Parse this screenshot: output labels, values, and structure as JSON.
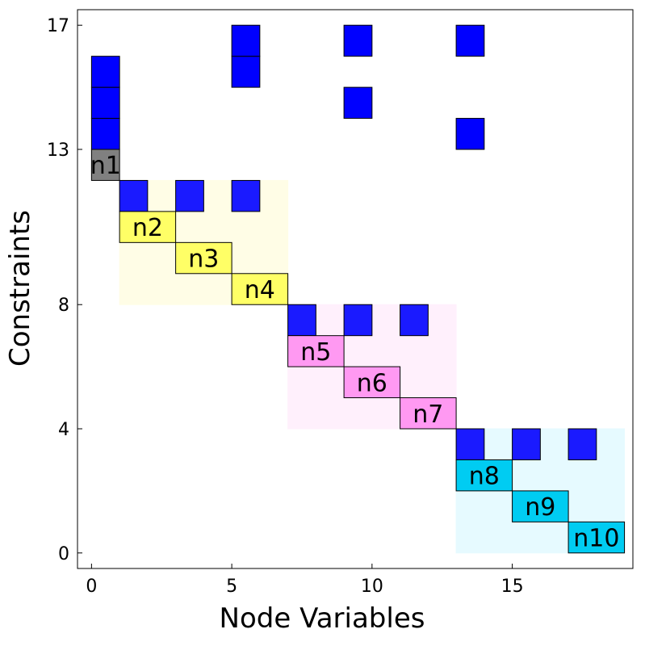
{
  "chart_data": {
    "type": "heatmap",
    "xlabel": "Node Variables",
    "ylabel": "Constraints",
    "xlim": [
      -0.5,
      19.3
    ],
    "ylim": [
      -0.5,
      17.5
    ],
    "xticks": [
      0,
      5,
      10,
      15
    ],
    "yticks": [
      0,
      4,
      8,
      13,
      17
    ],
    "grid": false,
    "regions": [
      {
        "x": [
          1,
          7
        ],
        "y": [
          8,
          12
        ],
        "color": "#fffde6"
      },
      {
        "x": [
          7,
          13
        ],
        "y": [
          4,
          8
        ],
        "color": "#fff0fc"
      },
      {
        "x": [
          13,
          19
        ],
        "y": [
          0,
          4
        ],
        "color": "#e6faff"
      }
    ],
    "nodes": [
      {
        "label": "n1",
        "x": [
          0,
          1
        ],
        "y": [
          12,
          13
        ],
        "color": "#808080"
      },
      {
        "label": "n2",
        "x": [
          1,
          3
        ],
        "y": [
          10,
          11
        ],
        "color": "#ffff66"
      },
      {
        "label": "n3",
        "x": [
          3,
          5
        ],
        "y": [
          9,
          10
        ],
        "color": "#ffff66"
      },
      {
        "label": "n4",
        "x": [
          5,
          7
        ],
        "y": [
          8,
          9
        ],
        "color": "#ffff66"
      },
      {
        "label": "n5",
        "x": [
          7,
          9
        ],
        "y": [
          6,
          7
        ],
        "color": "#ff99f2"
      },
      {
        "label": "n6",
        "x": [
          9,
          11
        ],
        "y": [
          5,
          6
        ],
        "color": "#ff99f2"
      },
      {
        "label": "n7",
        "x": [
          11,
          13
        ],
        "y": [
          4,
          5
        ],
        "color": "#ff99f2"
      },
      {
        "label": "n8",
        "x": [
          13,
          15
        ],
        "y": [
          2,
          3
        ],
        "color": "#00ccf2"
      },
      {
        "label": "n9",
        "x": [
          15,
          17
        ],
        "y": [
          1,
          2
        ],
        "color": "#00ccf2"
      },
      {
        "label": "n10",
        "x": [
          17,
          19
        ],
        "y": [
          0,
          1
        ],
        "color": "#00ccf2"
      }
    ],
    "link_cells": [
      {
        "x": 0,
        "y": 13,
        "color": "#0000ff"
      },
      {
        "x": 0,
        "y": 14,
        "color": "#0000ff"
      },
      {
        "x": 0,
        "y": 15,
        "color": "#0000ff"
      },
      {
        "x": 5,
        "y": 15,
        "color": "#0000ff"
      },
      {
        "x": 5,
        "y": 16,
        "color": "#0000ff"
      },
      {
        "x": 9,
        "y": 14,
        "color": "#0000ff"
      },
      {
        "x": 9,
        "y": 16,
        "color": "#0000ff"
      },
      {
        "x": 13,
        "y": 13,
        "color": "#0000ff"
      },
      {
        "x": 13,
        "y": 16,
        "color": "#0000ff"
      },
      {
        "x": 1,
        "y": 11,
        "color": "#1a1aff"
      },
      {
        "x": 3,
        "y": 11,
        "color": "#1a1aff"
      },
      {
        "x": 5,
        "y": 11,
        "color": "#1a1aff"
      },
      {
        "x": 7,
        "y": 7,
        "color": "#1a1aff"
      },
      {
        "x": 9,
        "y": 7,
        "color": "#1a1aff"
      },
      {
        "x": 11,
        "y": 7,
        "color": "#1a1aff"
      },
      {
        "x": 13,
        "y": 3,
        "color": "#1a1aff"
      },
      {
        "x": 15,
        "y": 3,
        "color": "#1a1aff"
      },
      {
        "x": 17,
        "y": 3,
        "color": "#1a1aff"
      }
    ]
  }
}
